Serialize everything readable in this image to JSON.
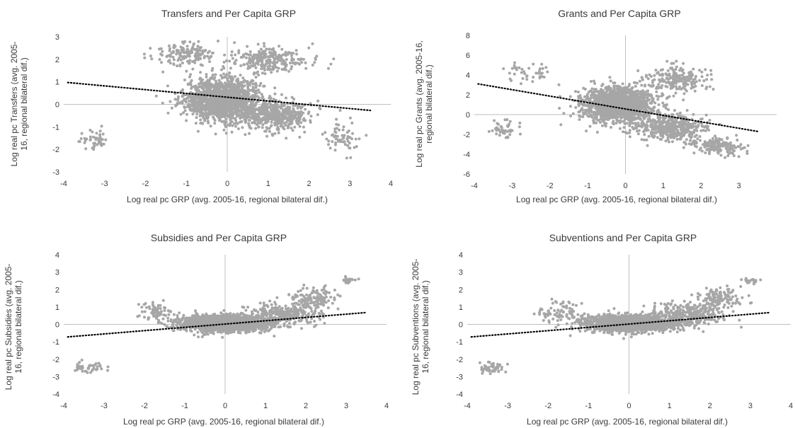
{
  "colors": {
    "points": "#a6a6a6",
    "axis": "#bfbfbf",
    "trend": "#000000",
    "text": "#3a3a3a"
  },
  "chart_data": [
    {
      "type": "scatter",
      "title": "Transfers and Per Capita GRP",
      "xlabel": "Log real pc GRP (avg. 2005-16, regional bilateral dif.)",
      "ylabel_lines": [
        "Log real pc Transfers (avg. 2005-",
        "16, regional bilateral dif.)"
      ],
      "xlim": [
        -4,
        4
      ],
      "ylim": [
        -3,
        3
      ],
      "xticks": [
        -4,
        -3,
        -2,
        -1,
        0,
        1,
        2,
        3,
        4
      ],
      "yticks": [
        -3,
        -2,
        -1,
        0,
        1,
        2,
        3
      ],
      "trendline": {
        "style": "dotted",
        "x": [
          -3.9,
          3.5
        ],
        "y": [
          0.97,
          -0.27
        ]
      },
      "clusters": [
        {
          "center": [
            -0.1,
            0.2
          ],
          "spread": [
            0.85,
            0.85
          ],
          "n": 1500
        },
        {
          "center": [
            1.2,
            -0.5
          ],
          "spread": [
            0.75,
            0.6
          ],
          "n": 450
        },
        {
          "center": [
            1.0,
            2.0
          ],
          "spread": [
            0.85,
            0.55
          ],
          "n": 260
        },
        {
          "center": [
            -1.0,
            2.2
          ],
          "spread": [
            0.7,
            0.45
          ],
          "n": 150
        },
        {
          "center": [
            -3.2,
            -1.6
          ],
          "spread": [
            0.35,
            0.4
          ],
          "n": 45
        },
        {
          "center": [
            2.8,
            -1.5
          ],
          "spread": [
            0.4,
            0.7
          ],
          "n": 60
        }
      ]
    },
    {
      "type": "scatter",
      "title": "Grants and Per Capita GRP",
      "xlabel": "Log real pc GRP (avg. 2005-16, regional bilateral dif.)",
      "ylabel_lines": [
        "Log real pc Grants (avg. 2005-16,",
        "regional bilateral dif.)"
      ],
      "xlim": [
        -4,
        4
      ],
      "ylim": [
        -6,
        8
      ],
      "xticks": [
        -4,
        -3,
        -2,
        -1,
        0,
        1,
        2,
        3
      ],
      "yticks": [
        -6,
        -4,
        -2,
        0,
        2,
        4,
        6,
        8
      ],
      "trendline": {
        "style": "dotted",
        "x": [
          -3.9,
          3.5
        ],
        "y": [
          3.1,
          -1.7
        ]
      },
      "clusters": [
        {
          "center": [
            -0.2,
            1.0
          ],
          "spread": [
            0.85,
            1.6
          ],
          "n": 1450
        },
        {
          "center": [
            1.2,
            -1.2
          ],
          "spread": [
            0.8,
            1.2
          ],
          "n": 450
        },
        {
          "center": [
            1.4,
            3.5
          ],
          "spread": [
            0.75,
            1.2
          ],
          "n": 200
        },
        {
          "center": [
            2.4,
            -3.2
          ],
          "spread": [
            0.6,
            0.8
          ],
          "n": 160
        },
        {
          "center": [
            -3.2,
            -1.5
          ],
          "spread": [
            0.35,
            0.9
          ],
          "n": 45
        },
        {
          "center": [
            -2.5,
            4.2
          ],
          "spread": [
            0.6,
            1.0
          ],
          "n": 40
        }
      ]
    },
    {
      "type": "scatter",
      "title": "Subsidies and Per Capita GRP",
      "xlabel": "Log real pc GRP (avg. 2005-16, regional bilateral dif.)",
      "ylabel_lines": [
        "Log real pc Subsidies (avg. 2005-",
        "16, regional bilateral dif.)"
      ],
      "xlim": [
        -4,
        4
      ],
      "ylim": [
        -4,
        4
      ],
      "xticks": [
        -4,
        -3,
        -2,
        -1,
        0,
        1,
        2,
        3,
        4
      ],
      "yticks": [
        -4,
        -3,
        -2,
        -1,
        0,
        1,
        2,
        3,
        4
      ],
      "trendline": {
        "style": "dotted",
        "x": [
          -3.9,
          3.5
        ],
        "y": [
          -0.72,
          0.68
        ]
      },
      "clusters": [
        {
          "center": [
            0.0,
            0.05
          ],
          "spread": [
            1.0,
            0.42
          ],
          "n": 1700
        },
        {
          "center": [
            1.5,
            0.6
          ],
          "spread": [
            0.8,
            0.6
          ],
          "n": 300
        },
        {
          "center": [
            2.2,
            1.5
          ],
          "spread": [
            0.5,
            0.55
          ],
          "n": 120
        },
        {
          "center": [
            3.0,
            2.5
          ],
          "spread": [
            0.25,
            0.2
          ],
          "n": 20
        },
        {
          "center": [
            -3.4,
            -2.5
          ],
          "spread": [
            0.35,
            0.3
          ],
          "n": 45
        },
        {
          "center": [
            -1.7,
            0.7
          ],
          "spread": [
            0.45,
            0.45
          ],
          "n": 70
        }
      ]
    },
    {
      "type": "scatter",
      "title": "Subventions and Per Capita GRP",
      "xlabel": "Log real pc GRP (avg. 2005-16, regional bilateral dif.)",
      "ylabel_lines": [
        "Log real pc Subventions (avg. 2005-",
        "16, regional bilateral dif.)"
      ],
      "xlim": [
        -4,
        4
      ],
      "ylim": [
        -4,
        4
      ],
      "xticks": [
        -4,
        -3,
        -2,
        -1,
        0,
        1,
        2,
        3,
        4
      ],
      "yticks": [
        -4,
        -3,
        -2,
        -1,
        0,
        1,
        2,
        3,
        4
      ],
      "trendline": {
        "style": "dotted",
        "x": [
          -3.9,
          3.5
        ],
        "y": [
          -0.72,
          0.68
        ]
      },
      "clusters": [
        {
          "center": [
            0.0,
            0.05
          ],
          "spread": [
            1.0,
            0.42
          ],
          "n": 1700
        },
        {
          "center": [
            1.5,
            0.6
          ],
          "spread": [
            0.8,
            0.6
          ],
          "n": 300
        },
        {
          "center": [
            2.2,
            1.5
          ],
          "spread": [
            0.5,
            0.55
          ],
          "n": 120
        },
        {
          "center": [
            3.0,
            2.5
          ],
          "spread": [
            0.25,
            0.2
          ],
          "n": 20
        },
        {
          "center": [
            -3.4,
            -2.5
          ],
          "spread": [
            0.35,
            0.3
          ],
          "n": 45
        },
        {
          "center": [
            -1.7,
            0.7
          ],
          "spread": [
            0.45,
            0.45
          ],
          "n": 70
        }
      ]
    }
  ]
}
